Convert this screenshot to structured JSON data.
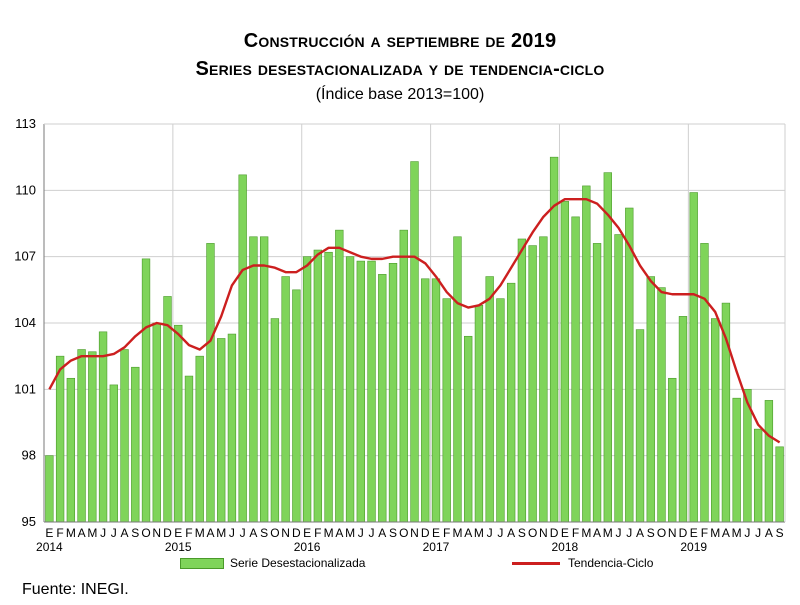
{
  "header": {
    "title_line1": "Construcción a septiembre de 2019",
    "title_line2": "Series desestacionalizada y de tendencia-ciclo",
    "subtitle": "(Índice base 2013=100)"
  },
  "footer": {
    "source": "Fuente: INEGI."
  },
  "colors": {
    "bar_fill": "#7fd45a",
    "bar_stroke": "#4a9a2a",
    "trend": "#cc1f1f",
    "grid": "#cfcfcf"
  },
  "chart_data": {
    "type": "bar",
    "title": "Construcción a septiembre de 2019",
    "subtitle": "Series desestacionalizada y de tendencia-ciclo",
    "ylabel": "",
    "ylim": [
      95,
      113
    ],
    "yticks": [
      95,
      98,
      101,
      104,
      107,
      110,
      113
    ],
    "grid": true,
    "legend_position": "bottom",
    "month_labels": [
      "E",
      "F",
      "M",
      "A",
      "M",
      "J",
      "J",
      "A",
      "S",
      "O",
      "N",
      "D",
      "E",
      "F",
      "M",
      "A",
      "M",
      "J",
      "J",
      "A",
      "S",
      "O",
      "N",
      "D",
      "E",
      "F",
      "M",
      "A",
      "M",
      "J",
      "J",
      "A",
      "S",
      "O",
      "N",
      "D",
      "E",
      "F",
      "M",
      "A",
      "M",
      "J",
      "J",
      "A",
      "S",
      "O",
      "N",
      "D",
      "E",
      "F",
      "M",
      "A",
      "M",
      "J",
      "J",
      "A",
      "S",
      "O",
      "N",
      "D",
      "E",
      "F",
      "M",
      "A",
      "M",
      "J",
      "J",
      "A",
      "S"
    ],
    "year_labels": [
      {
        "label": "2014",
        "month_index": 0
      },
      {
        "label": "2015",
        "month_index": 12
      },
      {
        "label": "2016",
        "month_index": 24
      },
      {
        "label": "2017",
        "month_index": 36
      },
      {
        "label": "2018",
        "month_index": 48
      },
      {
        "label": "2019",
        "month_index": 60
      }
    ],
    "series": [
      {
        "name": "Serie Desestacionalizada",
        "kind": "bar",
        "values": [
          98.0,
          102.5,
          101.5,
          102.8,
          102.7,
          103.6,
          101.2,
          102.8,
          102.0,
          106.9,
          104.0,
          105.2,
          103.9,
          101.6,
          102.5,
          107.6,
          103.3,
          103.5,
          110.7,
          107.9,
          107.9,
          104.2,
          106.1,
          105.5,
          107.0,
          107.3,
          107.2,
          108.2,
          107.0,
          106.8,
          106.8,
          106.2,
          106.7,
          108.2,
          111.3,
          106.0,
          106.0,
          105.1,
          107.9,
          103.4,
          104.8,
          106.1,
          105.1,
          105.8,
          107.8,
          107.5,
          107.9,
          111.5,
          109.5,
          108.8,
          110.2,
          107.6,
          110.8,
          108.0,
          109.2,
          103.7,
          106.1,
          105.6,
          101.5,
          104.3,
          109.9,
          107.6,
          104.2,
          104.9,
          100.6,
          101.0,
          99.2,
          100.5,
          98.4
        ]
      },
      {
        "name": "Tendencia-Ciclo",
        "kind": "line",
        "values": [
          101.0,
          101.9,
          102.3,
          102.5,
          102.5,
          102.5,
          102.6,
          102.9,
          103.4,
          103.8,
          104.0,
          103.9,
          103.5,
          103.0,
          102.8,
          103.2,
          104.3,
          105.7,
          106.4,
          106.6,
          106.6,
          106.5,
          106.3,
          106.3,
          106.6,
          107.1,
          107.4,
          107.4,
          107.2,
          107.0,
          106.9,
          106.9,
          107.0,
          107.0,
          107.0,
          106.7,
          106.1,
          105.4,
          104.9,
          104.7,
          104.8,
          105.1,
          105.7,
          106.5,
          107.3,
          108.1,
          108.8,
          109.3,
          109.6,
          109.6,
          109.6,
          109.4,
          108.9,
          108.3,
          107.5,
          106.6,
          105.9,
          105.4,
          105.3,
          105.3,
          105.3,
          105.1,
          104.5,
          103.3,
          101.8,
          100.4,
          99.4,
          98.9,
          98.6
        ]
      }
    ]
  }
}
